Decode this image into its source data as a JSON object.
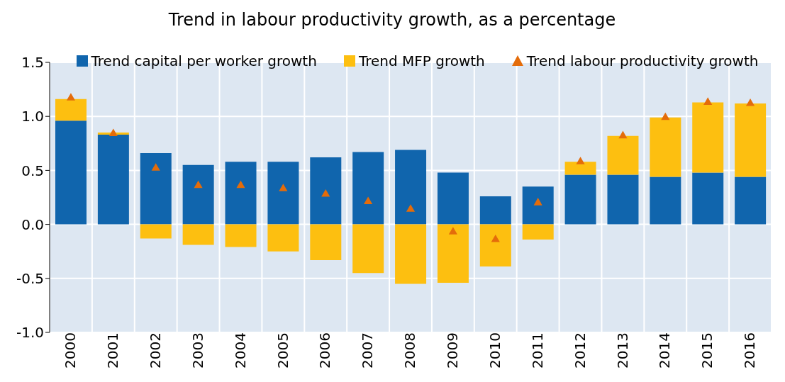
{
  "chart_data": {
    "type": "bar",
    "title": "Trend in labour productivity growth, as a percentage",
    "stacked": true,
    "grid": true,
    "legend": "top",
    "marker": "triangle",
    "categories": [
      "2000",
      "2001",
      "2002",
      "2003",
      "2004",
      "2005",
      "2006",
      "2007",
      "2008",
      "2009",
      "2010",
      "2011",
      "2012",
      "2013",
      "2014",
      "2015",
      "2016"
    ],
    "ylim": [
      -1.0,
      1.5
    ],
    "yticks": [
      {
        "value": -1.0,
        "label": "-1.0"
      },
      {
        "value": -0.5,
        "label": "-0.5"
      },
      {
        "value": 0,
        "label": "0.0"
      },
      {
        "value": 0.5,
        "label": "0.5"
      },
      {
        "value": 1.0,
        "label": "1.0"
      },
      {
        "value": 1.5,
        "label": "1.5"
      }
    ],
    "series": [
      {
        "name": "Trend capital per worker growth",
        "color": "#1065ad",
        "values": [
          0.96,
          0.83,
          0.66,
          0.55,
          0.58,
          0.58,
          0.62,
          0.67,
          0.69,
          0.48,
          0.26,
          0.35,
          0.46,
          0.46,
          0.44,
          0.48,
          0.44
        ]
      },
      {
        "name": "Trend MFP growth",
        "color": "#fdbf10",
        "values": [
          0.2,
          0.02,
          -0.13,
          -0.19,
          -0.21,
          -0.25,
          -0.33,
          -0.45,
          -0.55,
          -0.54,
          -0.39,
          -0.14,
          0.12,
          0.36,
          0.55,
          0.65,
          0.68
        ]
      },
      {
        "name": "Trend labour productivity growth",
        "type": "scatter",
        "color": "#e46c0a",
        "values": [
          1.17,
          0.84,
          0.52,
          0.36,
          0.36,
          0.33,
          0.28,
          0.21,
          0.14,
          -0.07,
          -0.14,
          0.2,
          0.58,
          0.82,
          0.99,
          1.13,
          1.12
        ]
      }
    ]
  }
}
